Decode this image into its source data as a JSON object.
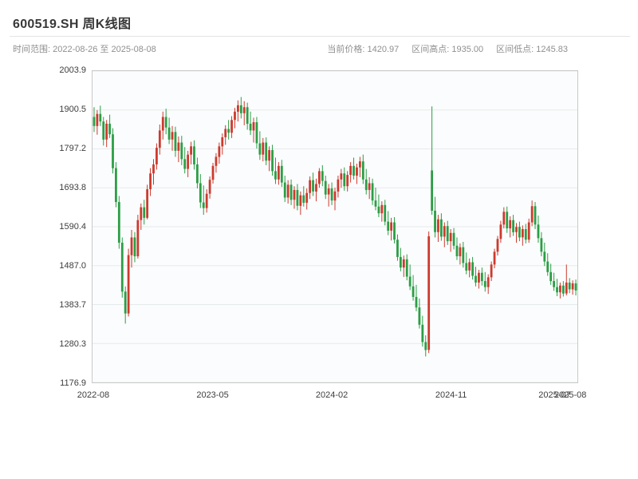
{
  "header": {
    "title": "600519.SH 周K线图",
    "time_range_label": "时间范围: 2022-08-26 至 2025-08-08",
    "stats": {
      "current_label": "当前价格: 1420.97",
      "high_label": "区间高点: 1935.00",
      "low_label": "区间低点: 1245.83"
    }
  },
  "chart_data": {
    "type": "candlestick",
    "title": "600519.SH 周K线图",
    "frequency": "weekly",
    "date_range": [
      "2022-08-26",
      "2025-08-08"
    ],
    "current_price": 1420.97,
    "range_high": 1935.0,
    "range_low": 1245.83,
    "ylim": [
      1176.9,
      2003.9
    ],
    "y_ticks": [
      2003.9,
      1900.5,
      1797.2,
      1693.8,
      1590.4,
      1487.0,
      1383.7,
      1280.3,
      1176.9
    ],
    "x_ticks": [
      {
        "index": 0,
        "label": "2022-08"
      },
      {
        "index": 38,
        "label": "2023-05"
      },
      {
        "index": 76,
        "label": "2024-02"
      },
      {
        "index": 114,
        "label": "2024-11"
      },
      {
        "index": 147,
        "label": "2025-07"
      },
      {
        "index": 152,
        "label": "2025-08"
      }
    ],
    "grid": true,
    "legend": false,
    "colors": {
      "up": "#cc3a2e",
      "down": "#2b9e45",
      "grid": "#e7eaec",
      "plot_border": "#c9c9c9",
      "plot_bg": "#fbfcfd"
    },
    "candles": [
      [
        1882,
        1908,
        1842,
        1858
      ],
      [
        1858,
        1900,
        1835,
        1890
      ],
      [
        1890,
        1912,
        1858,
        1870
      ],
      [
        1870,
        1882,
        1806,
        1822
      ],
      [
        1822,
        1874,
        1802,
        1864
      ],
      [
        1864,
        1888,
        1826,
        1836
      ],
      [
        1836,
        1852,
        1732,
        1746
      ],
      [
        1746,
        1762,
        1642,
        1656
      ],
      [
        1656,
        1672,
        1532,
        1548
      ],
      [
        1548,
        1562,
        1402,
        1418
      ],
      [
        1418,
        1432,
        1333,
        1360
      ],
      [
        1360,
        1532,
        1352,
        1515
      ],
      [
        1515,
        1582,
        1482,
        1562
      ],
      [
        1562,
        1576,
        1496,
        1512
      ],
      [
        1512,
        1622,
        1506,
        1608
      ],
      [
        1608,
        1652,
        1582,
        1642
      ],
      [
        1642,
        1662,
        1596,
        1614
      ],
      [
        1614,
        1702,
        1610,
        1690
      ],
      [
        1690,
        1746,
        1672,
        1732
      ],
      [
        1732,
        1770,
        1702,
        1756
      ],
      [
        1756,
        1812,
        1742,
        1800
      ],
      [
        1800,
        1862,
        1782,
        1846
      ],
      [
        1846,
        1896,
        1822,
        1882
      ],
      [
        1882,
        1904,
        1836,
        1854
      ],
      [
        1854,
        1880,
        1810,
        1822
      ],
      [
        1822,
        1858,
        1792,
        1842
      ],
      [
        1842,
        1856,
        1776,
        1792
      ],
      [
        1792,
        1830,
        1762,
        1814
      ],
      [
        1814,
        1832,
        1754,
        1770
      ],
      [
        1770,
        1802,
        1732,
        1744
      ],
      [
        1744,
        1792,
        1722,
        1782
      ],
      [
        1782,
        1816,
        1756,
        1804
      ],
      [
        1804,
        1820,
        1742,
        1756
      ],
      [
        1756,
        1774,
        1692,
        1706
      ],
      [
        1706,
        1730,
        1640,
        1655
      ],
      [
        1655,
        1700,
        1622,
        1640
      ],
      [
        1640,
        1690,
        1628,
        1678
      ],
      [
        1678,
        1724,
        1665,
        1715
      ],
      [
        1715,
        1760,
        1705,
        1752
      ],
      [
        1752,
        1786,
        1734,
        1776
      ],
      [
        1776,
        1814,
        1758,
        1804
      ],
      [
        1804,
        1838,
        1782,
        1828
      ],
      [
        1828,
        1860,
        1808,
        1850
      ],
      [
        1850,
        1874,
        1822,
        1840
      ],
      [
        1840,
        1884,
        1826,
        1874
      ],
      [
        1874,
        1906,
        1852,
        1896
      ],
      [
        1896,
        1926,
        1870,
        1913
      ],
      [
        1913,
        1935,
        1878,
        1892
      ],
      [
        1892,
        1924,
        1860,
        1908
      ],
      [
        1908,
        1920,
        1848,
        1864
      ],
      [
        1864,
        1896,
        1834,
        1846
      ],
      [
        1846,
        1880,
        1814,
        1868
      ],
      [
        1868,
        1882,
        1798,
        1812
      ],
      [
        1812,
        1844,
        1768,
        1782
      ],
      [
        1782,
        1826,
        1764,
        1814
      ],
      [
        1814,
        1828,
        1754,
        1766
      ],
      [
        1766,
        1804,
        1738,
        1794
      ],
      [
        1794,
        1808,
        1726,
        1738
      ],
      [
        1738,
        1774,
        1704,
        1716
      ],
      [
        1716,
        1762,
        1702,
        1752
      ],
      [
        1752,
        1768,
        1696,
        1708
      ],
      [
        1708,
        1726,
        1656,
        1668
      ],
      [
        1668,
        1714,
        1652,
        1702
      ],
      [
        1702,
        1716,
        1648,
        1662
      ],
      [
        1662,
        1698,
        1638,
        1688
      ],
      [
        1688,
        1704,
        1634,
        1646
      ],
      [
        1646,
        1684,
        1622,
        1674
      ],
      [
        1674,
        1698,
        1644,
        1654
      ],
      [
        1654,
        1692,
        1636,
        1680
      ],
      [
        1680,
        1724,
        1664,
        1714
      ],
      [
        1714,
        1734,
        1672,
        1684
      ],
      [
        1684,
        1718,
        1658,
        1704
      ],
      [
        1704,
        1746,
        1694,
        1738
      ],
      [
        1738,
        1754,
        1698,
        1712
      ],
      [
        1712,
        1726,
        1664,
        1676
      ],
      [
        1676,
        1704,
        1644,
        1692
      ],
      [
        1692,
        1708,
        1648,
        1660
      ],
      [
        1660,
        1694,
        1634,
        1684
      ],
      [
        1684,
        1726,
        1668,
        1716
      ],
      [
        1716,
        1744,
        1694,
        1732
      ],
      [
        1732,
        1748,
        1686,
        1698
      ],
      [
        1698,
        1738,
        1684,
        1728
      ],
      [
        1728,
        1762,
        1708,
        1752
      ],
      [
        1752,
        1774,
        1716,
        1726
      ],
      [
        1726,
        1758,
        1704,
        1748
      ],
      [
        1748,
        1776,
        1722,
        1764
      ],
      [
        1764,
        1782,
        1704,
        1716
      ],
      [
        1716,
        1744,
        1676,
        1688
      ],
      [
        1688,
        1722,
        1664,
        1706
      ],
      [
        1706,
        1718,
        1648,
        1660
      ],
      [
        1660,
        1694,
        1634,
        1644
      ],
      [
        1644,
        1676,
        1616,
        1626
      ],
      [
        1626,
        1658,
        1604,
        1648
      ],
      [
        1648,
        1662,
        1594,
        1604
      ],
      [
        1604,
        1632,
        1568,
        1580
      ],
      [
        1580,
        1614,
        1554,
        1602
      ],
      [
        1602,
        1616,
        1546,
        1556
      ],
      [
        1556,
        1570,
        1500,
        1510
      ],
      [
        1510,
        1534,
        1472,
        1482
      ],
      [
        1482,
        1514,
        1457,
        1504
      ],
      [
        1504,
        1517,
        1448,
        1458
      ],
      [
        1458,
        1490,
        1422,
        1432
      ],
      [
        1432,
        1462,
        1394,
        1404
      ],
      [
        1404,
        1436,
        1366,
        1376
      ],
      [
        1376,
        1400,
        1320,
        1330
      ],
      [
        1330,
        1354,
        1272,
        1284
      ],
      [
        1284,
        1302,
        1245.83,
        1263
      ],
      [
        1263,
        1578,
        1255,
        1565
      ],
      [
        1740,
        1910,
        1622,
        1633
      ],
      [
        1633,
        1670,
        1562,
        1576
      ],
      [
        1576,
        1622,
        1550,
        1610
      ],
      [
        1610,
        1626,
        1553,
        1564
      ],
      [
        1564,
        1602,
        1536,
        1592
      ],
      [
        1592,
        1606,
        1542,
        1552
      ],
      [
        1552,
        1584,
        1524,
        1574
      ],
      [
        1574,
        1587,
        1530,
        1540
      ],
      [
        1540,
        1562,
        1502,
        1512
      ],
      [
        1512,
        1546,
        1490,
        1536
      ],
      [
        1536,
        1550,
        1482,
        1494
      ],
      [
        1494,
        1522,
        1464,
        1474
      ],
      [
        1474,
        1506,
        1456,
        1496
      ],
      [
        1496,
        1510,
        1450,
        1460
      ],
      [
        1460,
        1484,
        1432,
        1442
      ],
      [
        1442,
        1476,
        1426,
        1468
      ],
      [
        1468,
        1482,
        1434,
        1446
      ],
      [
        1446,
        1470,
        1418,
        1430
      ],
      [
        1430,
        1464,
        1412,
        1456
      ],
      [
        1456,
        1498,
        1446,
        1490
      ],
      [
        1490,
        1532,
        1480,
        1524
      ],
      [
        1524,
        1566,
        1514,
        1558
      ],
      [
        1558,
        1606,
        1548,
        1596
      ],
      [
        1596,
        1642,
        1586,
        1630
      ],
      [
        1630,
        1644,
        1574,
        1586
      ],
      [
        1586,
        1618,
        1562,
        1608
      ],
      [
        1608,
        1622,
        1566,
        1576
      ],
      [
        1576,
        1600,
        1548,
        1590
      ],
      [
        1590,
        1604,
        1552,
        1562
      ],
      [
        1562,
        1594,
        1540,
        1584
      ],
      [
        1584,
        1598,
        1546,
        1556
      ],
      [
        1556,
        1612,
        1548,
        1602
      ],
      [
        1602,
        1660,
        1592,
        1645
      ],
      [
        1645,
        1656,
        1584,
        1596
      ],
      [
        1596,
        1620,
        1548,
        1560
      ],
      [
        1560,
        1576,
        1512,
        1524
      ],
      [
        1524,
        1548,
        1486,
        1498
      ],
      [
        1498,
        1520,
        1460,
        1470
      ],
      [
        1470,
        1492,
        1436,
        1446
      ],
      [
        1446,
        1468,
        1420,
        1430
      ],
      [
        1430,
        1452,
        1406,
        1416
      ],
      [
        1416,
        1442,
        1400,
        1434
      ],
      [
        1434,
        1446,
        1405,
        1413
      ],
      [
        1413,
        1490,
        1408,
        1442
      ],
      [
        1442,
        1454,
        1414,
        1424
      ],
      [
        1424,
        1448,
        1410,
        1440
      ],
      [
        1440,
        1450,
        1408,
        1420.97
      ]
    ]
  }
}
